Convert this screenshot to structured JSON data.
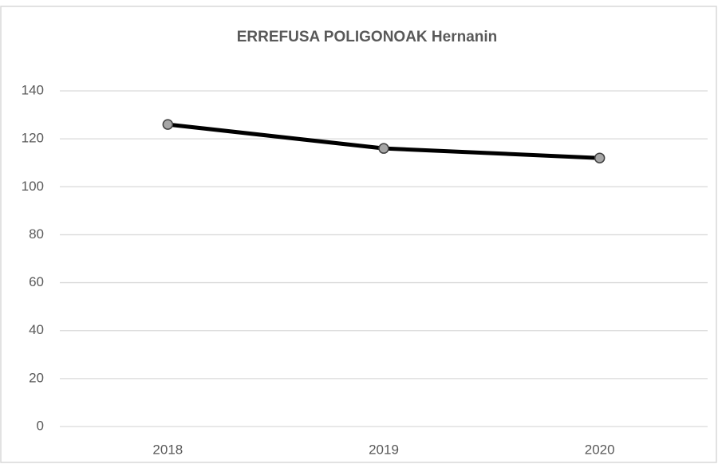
{
  "chart_data": {
    "type": "line",
    "title": "ERREFUSA POLIGONOAK Hernanin",
    "categories": [
      "2018",
      "2019",
      "2020"
    ],
    "values": [
      126,
      116,
      112
    ],
    "color": "#000000",
    "marker_color": "#a6a6a6",
    "ylim": [
      0,
      140
    ],
    "yticks": [
      0,
      20,
      40,
      60,
      80,
      100,
      120,
      140
    ],
    "grid": true
  }
}
